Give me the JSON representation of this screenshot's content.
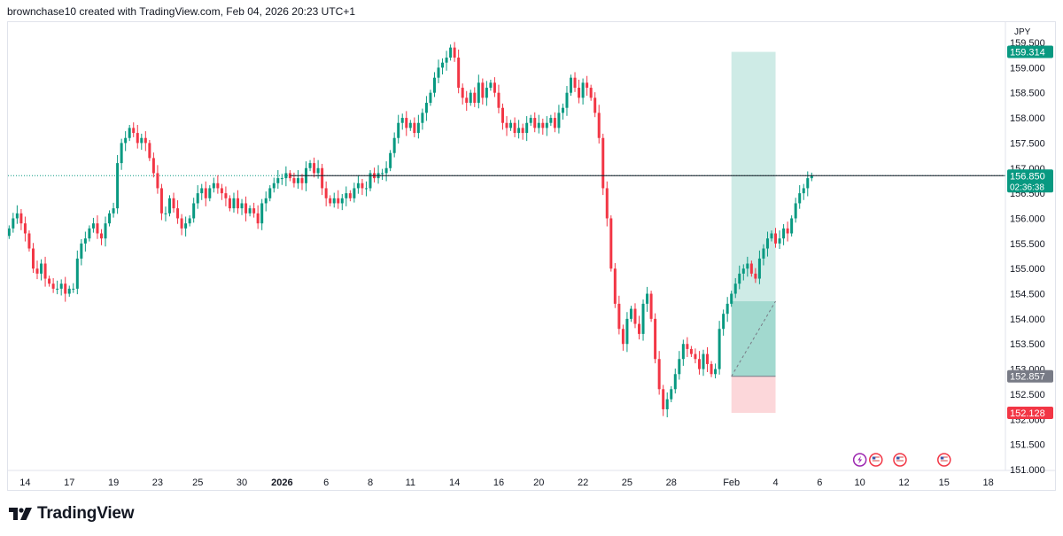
{
  "header": {
    "attribution": "brownchase10 created with TradingView.com, Feb 04, 2026 20:23 UTC+1"
  },
  "footer": {
    "brand": "TradingView"
  },
  "chart_data": {
    "type": "candlestick",
    "currency": "JPY",
    "ylim": [
      151.0,
      159.5
    ],
    "y_ticks": [
      "151.000",
      "151.500",
      "152.000",
      "152.500",
      "153.000",
      "153.500",
      "154.000",
      "154.500",
      "155.000",
      "155.500",
      "156.000",
      "156.500",
      "157.000",
      "157.500",
      "158.000",
      "158.500",
      "159.000",
      "159.500"
    ],
    "x_ticks": [
      {
        "label": "14",
        "bar": 4,
        "bold": false
      },
      {
        "label": "17",
        "bar": 15,
        "bold": false
      },
      {
        "label": "19",
        "bar": 26,
        "bold": false
      },
      {
        "label": "23",
        "bar": 37,
        "bold": false
      },
      {
        "label": "25",
        "bar": 47,
        "bold": false
      },
      {
        "label": "30",
        "bar": 58,
        "bold": false
      },
      {
        "label": "2026",
        "bar": 68,
        "bold": true
      },
      {
        "label": "6",
        "bar": 79,
        "bold": false
      },
      {
        "label": "8",
        "bar": 90,
        "bold": false
      },
      {
        "label": "11",
        "bar": 100,
        "bold": false
      },
      {
        "label": "14",
        "bar": 111,
        "bold": false
      },
      {
        "label": "16",
        "bar": 122,
        "bold": false
      },
      {
        "label": "20",
        "bar": 132,
        "bold": false
      },
      {
        "label": "22",
        "bar": 143,
        "bold": false
      },
      {
        "label": "25",
        "bar": 154,
        "bold": false
      },
      {
        "label": "28",
        "bar": 165,
        "bold": false
      },
      {
        "label": "Feb",
        "bar": 180,
        "bold": false
      },
      {
        "label": "4",
        "bar": 191,
        "bold": false
      },
      {
        "label": "6",
        "bar": 202,
        "bold": false
      },
      {
        "label": "10",
        "bar": 212,
        "bold": false
      },
      {
        "label": "12",
        "bar": 223,
        "bold": false
      },
      {
        "label": "15",
        "bar": 233,
        "bold": false
      },
      {
        "label": "18",
        "bar": 244,
        "bold": false
      }
    ],
    "closes": [
      155.8,
      156.0,
      156.1,
      155.9,
      155.7,
      155.4,
      155.0,
      154.9,
      155.1,
      154.8,
      154.7,
      154.6,
      154.6,
      154.7,
      154.5,
      154.6,
      154.6,
      155.2,
      155.5,
      155.6,
      155.8,
      155.9,
      155.7,
      155.6,
      155.9,
      156.1,
      156.2,
      157.1,
      157.5,
      157.6,
      157.8,
      157.7,
      157.5,
      157.6,
      157.5,
      157.2,
      156.9,
      156.6,
      156.1,
      156.1,
      156.4,
      156.2,
      156.0,
      155.8,
      155.9,
      156.0,
      156.3,
      156.5,
      156.6,
      156.4,
      156.6,
      156.7,
      156.6,
      156.5,
      156.4,
      156.2,
      156.4,
      156.2,
      156.3,
      156.1,
      156.2,
      156.1,
      155.9,
      156.3,
      156.4,
      156.6,
      156.7,
      156.8,
      156.8,
      156.9,
      156.8,
      156.7,
      156.8,
      156.7,
      157.0,
      157.1,
      156.9,
      157.0,
      156.6,
      156.4,
      156.3,
      156.4,
      156.3,
      156.4,
      156.5,
      156.4,
      156.6,
      156.7,
      156.6,
      156.6,
      156.9,
      156.8,
      156.9,
      156.9,
      157.0,
      157.3,
      157.6,
      157.9,
      158.0,
      157.8,
      157.9,
      157.7,
      157.9,
      158.1,
      158.3,
      158.5,
      158.8,
      159.0,
      159.1,
      159.2,
      159.4,
      159.2,
      158.6,
      158.4,
      158.3,
      158.5,
      158.3,
      158.7,
      158.4,
      158.6,
      158.7,
      158.5,
      158.2,
      157.9,
      157.8,
      157.9,
      157.7,
      157.8,
      157.7,
      157.9,
      158.0,
      157.8,
      157.9,
      157.8,
      157.9,
      158.0,
      157.8,
      158.1,
      158.2,
      158.5,
      158.8,
      158.6,
      158.4,
      158.7,
      158.6,
      158.4,
      158.1,
      157.6,
      156.6,
      156.0,
      155.0,
      154.3,
      153.8,
      153.5,
      154.0,
      154.2,
      153.9,
      153.7,
      154.3,
      154.5,
      154.0,
      153.2,
      152.6,
      152.2,
      152.4,
      152.6,
      152.9,
      153.2,
      153.5,
      153.4,
      153.3,
      153.2,
      153.0,
      153.3,
      153.1,
      152.9,
      153.0,
      153.8,
      154.1,
      154.3,
      154.5,
      154.7,
      154.9,
      155.0,
      155.1,
      154.9,
      154.8,
      155.2,
      155.4,
      155.6,
      155.7,
      155.5,
      155.6,
      155.8,
      155.7,
      156.0,
      156.3,
      156.5,
      156.6,
      156.8,
      156.85
    ],
    "last_price": {
      "value": 156.85,
      "label": "156.850",
      "countdown": "02:36:38",
      "color": "#089981"
    },
    "horizontal_line": {
      "value": 156.85,
      "start_bar": 70,
      "end_bar": 248,
      "color": "#131722"
    },
    "position": {
      "start_bar": 180,
      "end_bar": 191,
      "entry": 152.857,
      "entry_label": "152.857",
      "target": 159.314,
      "target_label": "159.314",
      "stop": 152.128,
      "stop_label": "152.128",
      "target_color": "#089981",
      "stop_color": "#f23645",
      "entry_color": "#787b86",
      "active_top": 154.35,
      "active_end_bar": 191
    },
    "event_icons": [
      {
        "bar": 212,
        "icon": "lightning-icon",
        "color": "#9c27b0"
      },
      {
        "bar": 216,
        "icon": "us-flag-icon",
        "color": "#f23645"
      },
      {
        "bar": 222,
        "icon": "us-flag-icon",
        "color": "#f23645"
      },
      {
        "bar": 233,
        "icon": "us-flag-icon",
        "color": "#f23645"
      }
    ],
    "colors": {
      "up": "#089981",
      "down": "#f23645",
      "grid": "#f0f3fa",
      "text": "#131722",
      "axis_text": "#131722"
    }
  }
}
